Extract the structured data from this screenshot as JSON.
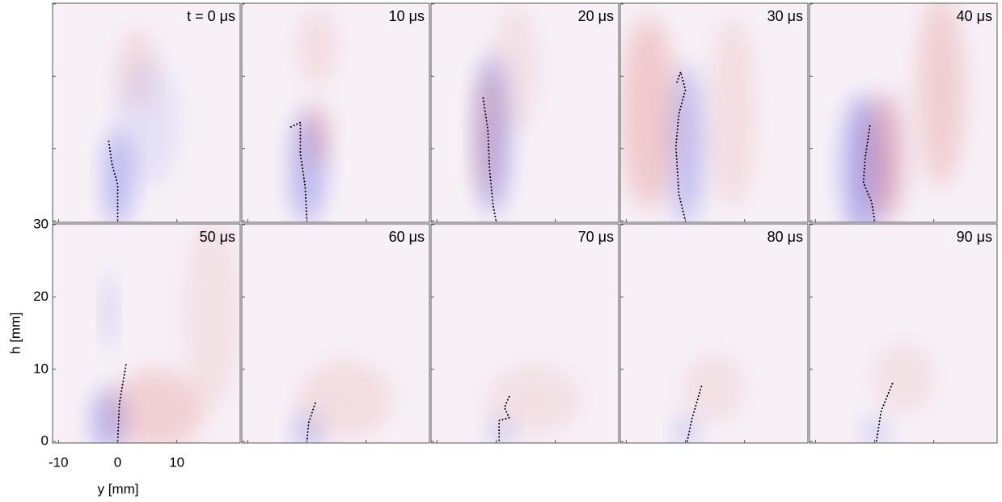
{
  "chart_data": {
    "type": "image-grid",
    "xlabel": "y [mm]",
    "ylabel": "h [mm]",
    "xlim": [
      -11,
      20.7
    ],
    "ylim": [
      -0.2,
      30.1
    ],
    "xticks": [
      -10,
      0,
      10
    ],
    "yticks": [
      0,
      10,
      20,
      30
    ],
    "panels": [
      {
        "title": "t = 0 μs",
        "trace": {
          "x": [
            -1.5,
            -1,
            0,
            0,
            0
          ],
          "y": [
            11,
            8,
            5,
            2,
            0
          ]
        }
      },
      {
        "title": "10 μs",
        "trace": {
          "x": [
            -2.7,
            -1.1,
            -1.1,
            -0.3,
            0
          ],
          "y": [
            13,
            13.6,
            9.2,
            4.8,
            0
          ]
        }
      },
      {
        "title": "20 μs",
        "trace": {
          "x": [
            -2.2,
            -1.4,
            -1.1,
            -0.5,
            0
          ],
          "y": [
            17,
            12.6,
            7,
            2,
            0
          ]
        }
      },
      {
        "title": "30 μs",
        "trace": {
          "x": [
            -1.4,
            -0.8,
            0,
            -1.1,
            -1.6,
            -1.1,
            0
          ],
          "y": [
            19.2,
            20.6,
            18.1,
            14.8,
            10.3,
            3.7,
            0
          ]
        }
      },
      {
        "title": "40 μs",
        "trace": {
          "x": [
            -0.8,
            -1.6,
            -1.9,
            -0.5,
            0
          ],
          "y": [
            13.1,
            8.7,
            5.3,
            2.6,
            0
          ]
        }
      },
      {
        "title": "50 μs",
        "trace": {
          "x": [
            1.4,
            0.3,
            0
          ],
          "y": [
            10.6,
            5.3,
            0
          ]
        }
      },
      {
        "title": "60 μs",
        "trace": {
          "x": [
            1.4,
            0.3,
            0
          ],
          "y": [
            5.3,
            2.6,
            0
          ]
        }
      },
      {
        "title": "70 μs",
        "trace": {
          "x": [
            2.2,
            1.4,
            2.2,
            0.5,
            0.5
          ],
          "y": [
            6.2,
            4.7,
            3.3,
            2.9,
            0
          ]
        }
      },
      {
        "title": "80 μs",
        "trace": {
          "x": [
            2.7,
            1.1,
            0.3
          ],
          "y": [
            7.6,
            3.1,
            0
          ]
        }
      },
      {
        "title": "90 μs",
        "trace": {
          "x": [
            3,
            1.1,
            0.3
          ],
          "y": [
            8,
            4.2,
            0
          ]
        }
      }
    ]
  }
}
